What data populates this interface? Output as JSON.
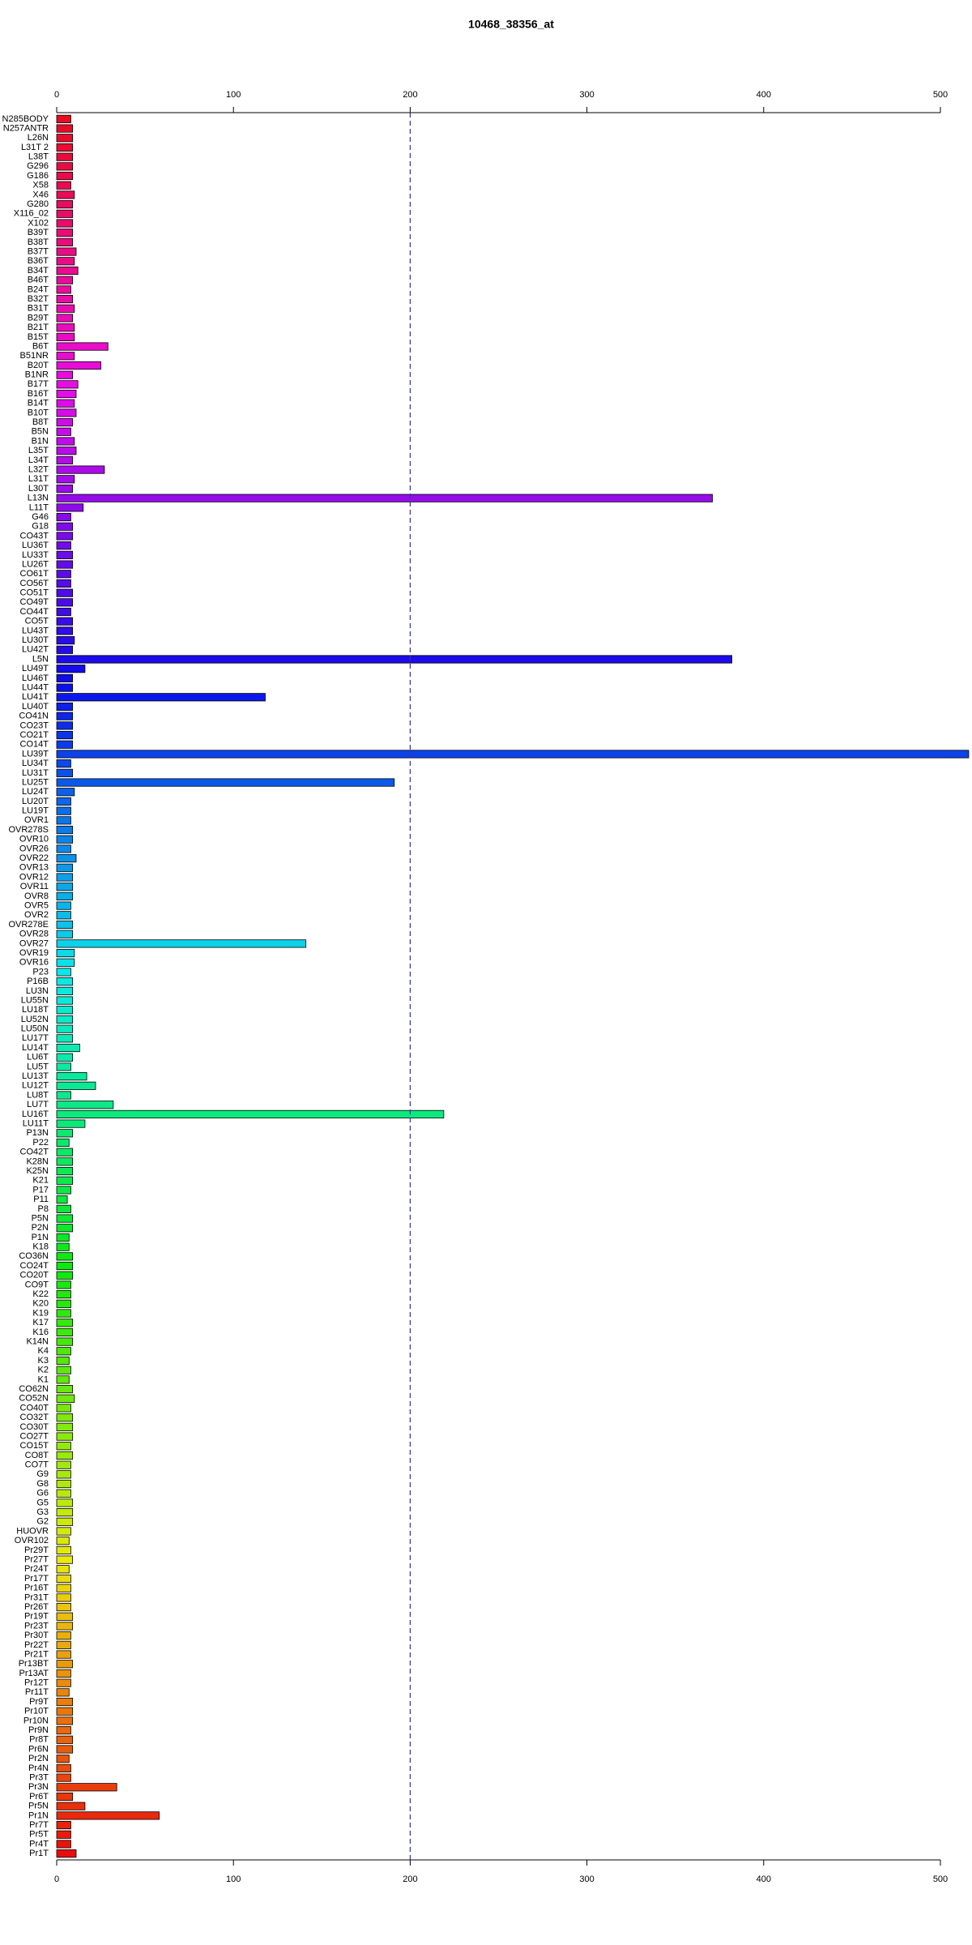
{
  "chart_data": {
    "type": "barh",
    "title": "10468_38356_at",
    "categories": [
      "N285BODY",
      "N257ANTR",
      "L26N",
      "L31T 2",
      "L38T",
      "G296",
      "G186",
      "X58",
      "X46",
      "G280",
      "X116_02",
      "X102",
      "B39T",
      "B38T",
      "B37T",
      "B36T",
      "B34T",
      "B46T",
      "B24T",
      "B32T",
      "B31T",
      "B29T",
      "B21T",
      "B15T",
      "B6T",
      "B51NR",
      "B20T",
      "B1NR",
      "B17T",
      "B16T",
      "B14T",
      "B10T",
      "B8T",
      "B5N",
      "B1N",
      "L35T",
      "L34T",
      "L32T",
      "L31T",
      "L30T",
      "L13N",
      "L11T",
      "G46",
      "G18",
      "CO43T",
      "LU36T",
      "LU33T",
      "LU26T",
      "CO61T",
      "CO56T",
      "CO51T",
      "CO49T",
      "CO44T",
      "CO5T",
      "LU43T",
      "LU30T",
      "LU42T",
      "L5N",
      "LU49T",
      "LU46T",
      "LU44T",
      "LU41T",
      "LU40T",
      "CO41N",
      "CO23T",
      "CO21T",
      "CO14T",
      "LU39T",
      "LU34T",
      "LU31T",
      "LU25T",
      "LU24T",
      "LU20T",
      "LU19T",
      "OVR1",
      "OVR278S",
      "OVR10",
      "OVR26",
      "OVR22",
      "OVR13",
      "OVR12",
      "OVR11",
      "OVR8",
      "OVR5",
      "OVR2",
      "OVR278E",
      "OVR28",
      "OVR27",
      "OVR19",
      "OVR16",
      "P23",
      "P16B",
      "LU3N",
      "LU55N",
      "LU18T",
      "LU52N",
      "LU50N",
      "LU17T",
      "LU14T",
      "LU6T",
      "LU5T",
      "LU13T",
      "LU12T",
      "LU8T",
      "LU7T",
      "LU16T",
      "LU11T",
      "P13N",
      "P22",
      "CO42T",
      "K28N",
      "K25N",
      "K21",
      "P17",
      "P11",
      "P8",
      "P5N",
      "P2N",
      "P1N",
      "K18",
      "CO36N",
      "CO24T",
      "CO20T",
      "CO9T",
      "K22",
      "K20",
      "K19",
      "K17",
      "K16",
      "K14N",
      "K4",
      "K3",
      "K2",
      "K1",
      "CO62N",
      "CO52N",
      "CO40T",
      "CO32T",
      "CO30T",
      "CO27T",
      "CO15T",
      "CO8T",
      "CO7T",
      "G9",
      "G8",
      "G6",
      "G5",
      "G3",
      "G2",
      "HUOVR",
      "OVR102",
      "Pr29T",
      "Pr27T",
      "Pr24T",
      "Pr17T",
      "Pr16T",
      "Pr31T",
      "Pr26T",
      "Pr19T",
      "Pr23T",
      "Pr30T",
      "Pr22T",
      "Pr21T",
      "Pr13BT",
      "Pr13AT",
      "Pr12T",
      "Pr11T",
      "Pr9T",
      "Pr10T",
      "Pr10N",
      "Pr9N",
      "Pr8T",
      "Pr6N",
      "Pr2N",
      "Pr4N",
      "Pr3T",
      "Pr3N",
      "Pr6T",
      "Pr5N",
      "Pr1N",
      "Pr7T",
      "Pr5T",
      "Pr4T",
      "Pr1T"
    ],
    "values": [
      8,
      9,
      9,
      9,
      9,
      9,
      9,
      8,
      10,
      9,
      9,
      9,
      9,
      9,
      11,
      10,
      12,
      9,
      8,
      9,
      10,
      9,
      10,
      10,
      29,
      10,
      25,
      9,
      12,
      11,
      10,
      11,
      9,
      8,
      10,
      11,
      9,
      27,
      10,
      9,
      371,
      15,
      8,
      9,
      9,
      8,
      9,
      9,
      8,
      8,
      9,
      9,
      8,
      9,
      9,
      10,
      9,
      382,
      16,
      9,
      9,
      118,
      9,
      9,
      9,
      9,
      9,
      516,
      8,
      9,
      191,
      10,
      8,
      8,
      8,
      9,
      9,
      8,
      11,
      9,
      9,
      9,
      9,
      8,
      8,
      9,
      9,
      141,
      10,
      10,
      8,
      9,
      9,
      9,
      9,
      9,
      9,
      9,
      13,
      9,
      8,
      17,
      22,
      8,
      32,
      219,
      16,
      9,
      7,
      9,
      9,
      9,
      9,
      8,
      6,
      8,
      9,
      9,
      7,
      7,
      9,
      9,
      9,
      8,
      8,
      8,
      8,
      9,
      9,
      9,
      8,
      7,
      8,
      7,
      9,
      10,
      8,
      9,
      9,
      9,
      8,
      9,
      8,
      8,
      8,
      8,
      9,
      9,
      9,
      8,
      7,
      8,
      9,
      7,
      8,
      8,
      8,
      8,
      9,
      9,
      8,
      8,
      8,
      9,
      8,
      8,
      7,
      9,
      9,
      9,
      8,
      9,
      9,
      7,
      8,
      8,
      34,
      9,
      16,
      58,
      8,
      8,
      8,
      11
    ],
    "color_scale": "rainbow",
    "xlim": [
      0,
      500
    ],
    "xticks": [
      0,
      100,
      200,
      300,
      400,
      500
    ],
    "reference_line": 200
  }
}
